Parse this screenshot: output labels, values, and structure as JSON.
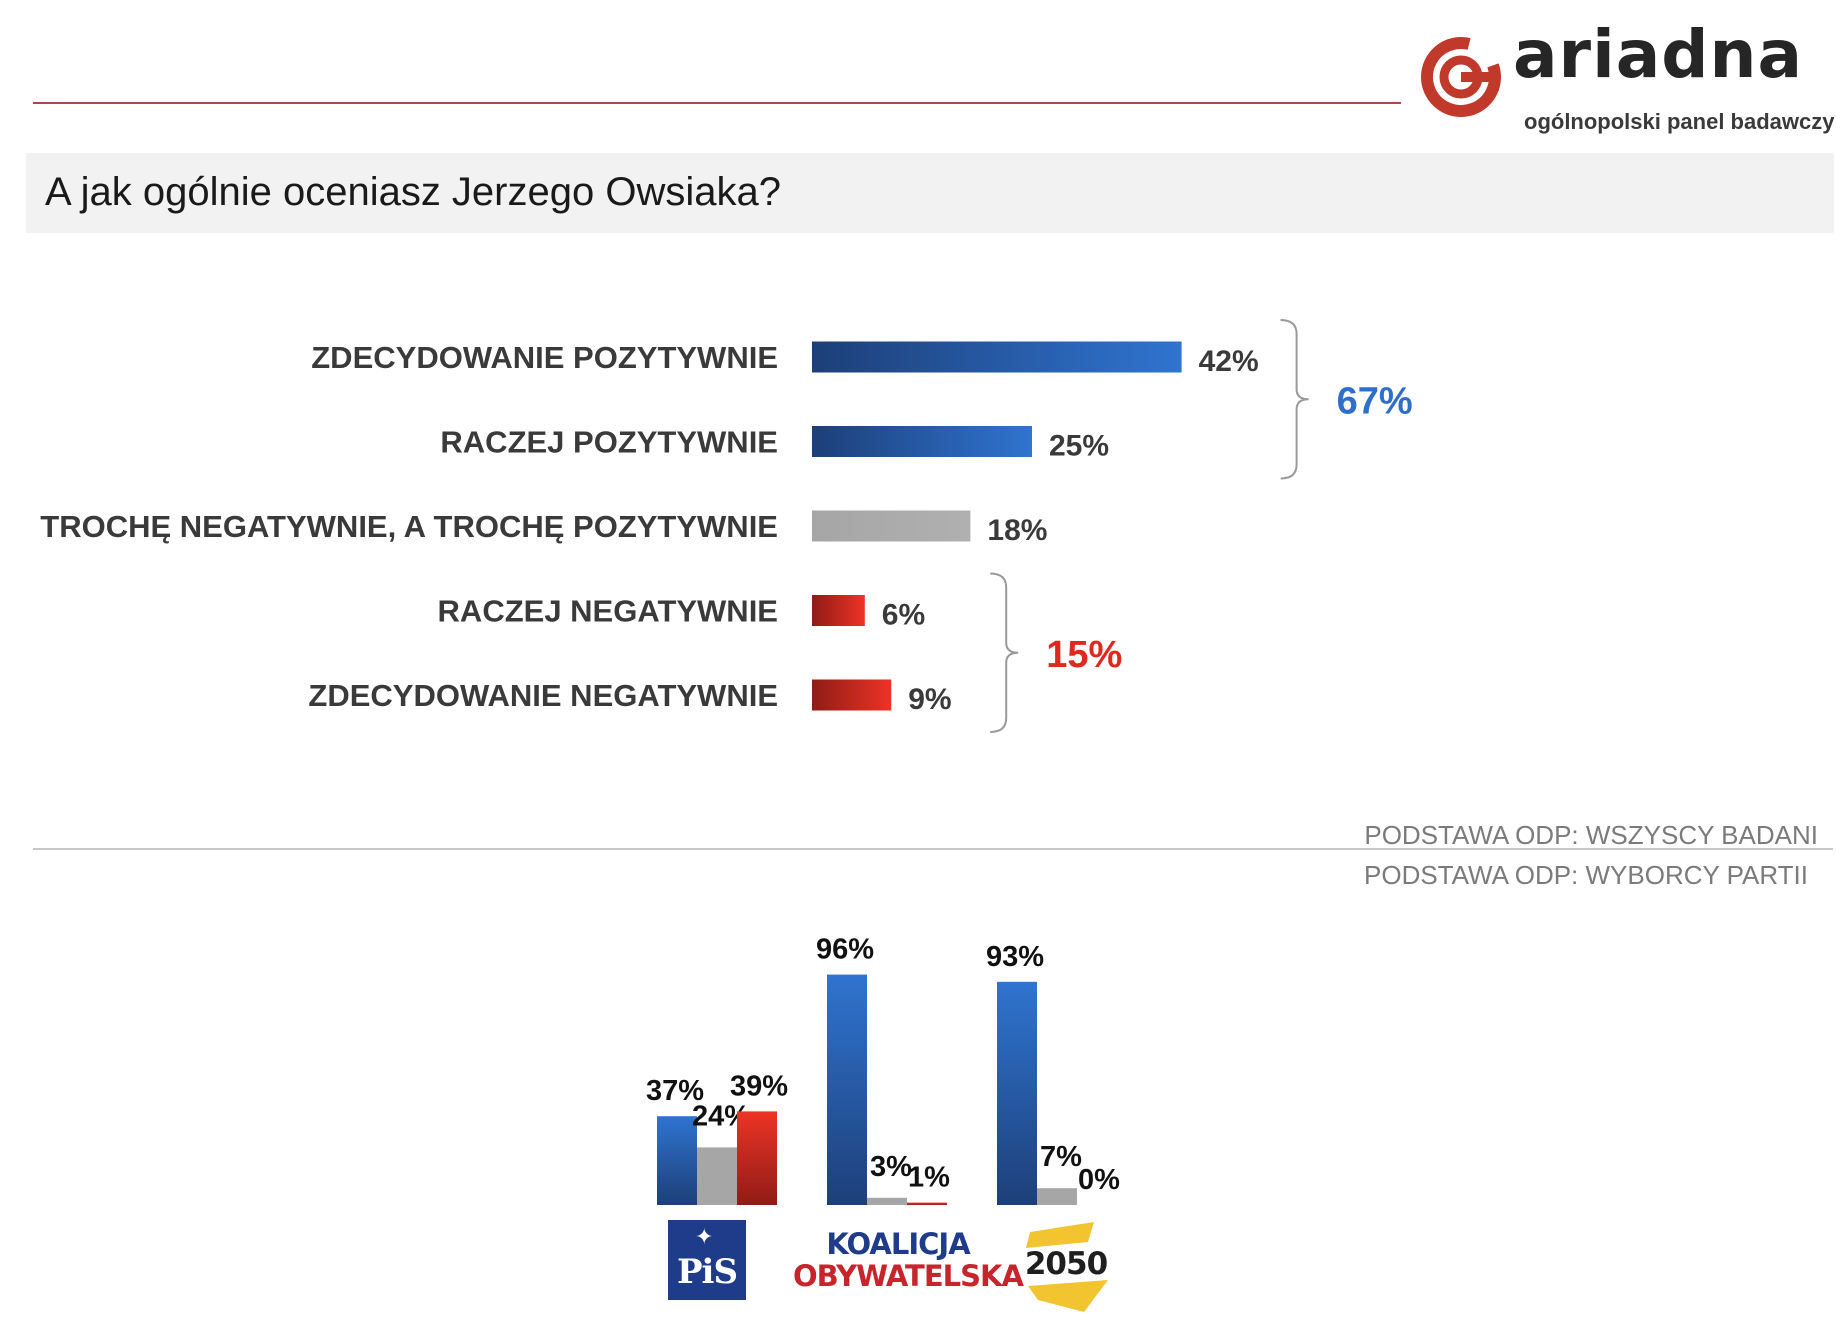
{
  "brand": {
    "name": "ariadna",
    "tagline": "ogólnopolski panel badawczy",
    "accent_color": "#c0392b"
  },
  "question": "A jak ogólnie oceniasz Jerzego Owsiaka?",
  "base_all": "PODSTAWA ODP: WSZYSCY BADANI",
  "base_parties": "PODSTAWA ODP: WYBORCY PARTII",
  "parties": [
    {
      "name": "PiS",
      "logo_text": "PiS"
    },
    {
      "name": "Koalicja Obywatelska",
      "logo_line1": "KOALICJA",
      "logo_line2": "OBYWATELSKA"
    },
    {
      "name": "2050",
      "logo_text": "2050"
    }
  ],
  "chart_data": [
    {
      "type": "bar",
      "orientation": "horizontal",
      "categories": [
        "ZDECYDOWANIE POZYTYWNIE",
        "RACZEJ POZYTYWNIE",
        "TROCHĘ NEGATYWNIE, A TROCHĘ POZYTYWNIE",
        "RACZEJ NEGATYWNIE",
        "ZDECYDOWANIE NEGATYWNIE"
      ],
      "values": [
        42,
        25,
        18,
        6,
        9
      ],
      "value_labels": [
        "42%",
        "25%",
        "18%",
        "6%",
        "9%"
      ],
      "colors": [
        "#2f6fc9",
        "#2f6fc9",
        "#a6a6a6",
        "#e0291e",
        "#e0291e"
      ],
      "groups": [
        {
          "rows": [
            0,
            1
          ],
          "total_label": "67%",
          "color": "#2f6fc9"
        },
        {
          "rows": [
            3,
            4
          ],
          "total_label": "15%",
          "color": "#e0291e"
        }
      ]
    },
    {
      "type": "bar",
      "orientation": "vertical",
      "categories": [
        "PiS",
        "Koalicja Obywatelska",
        "2050"
      ],
      "series": [
        {
          "color": "#2f6fc9",
          "values": [
            37,
            96,
            93
          ],
          "labels": [
            "37%",
            "96%",
            "93%"
          ]
        },
        {
          "color": "#a6a6a6",
          "values": [
            24,
            3,
            7
          ],
          "labels": [
            "24%",
            "3%",
            "7%"
          ]
        },
        {
          "color": "#e0291e",
          "values": [
            39,
            1,
            0
          ],
          "labels": [
            "39%",
            "1%",
            "0%"
          ]
        }
      ]
    }
  ]
}
